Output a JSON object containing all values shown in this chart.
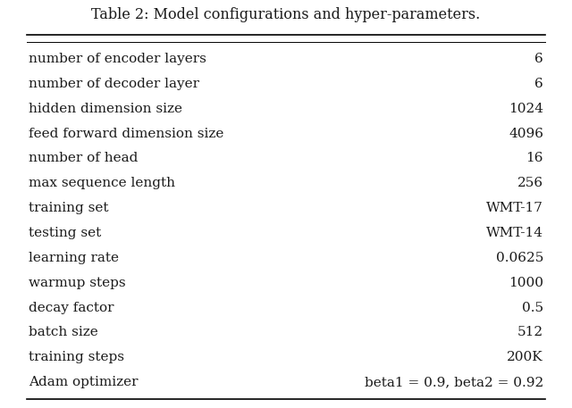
{
  "title": "Table 2: Model configurations and hyper-parameters.",
  "rows": [
    [
      "number of encoder layers",
      "6"
    ],
    [
      "number of decoder layer",
      "6"
    ],
    [
      "hidden dimension size",
      "1024"
    ],
    [
      "feed forward dimension size",
      "4096"
    ],
    [
      "number of head",
      "16"
    ],
    [
      "max sequence length",
      "256"
    ],
    [
      "training set",
      "WMT-17"
    ],
    [
      "testing set",
      "WMT-14"
    ],
    [
      "learning rate",
      "0.0625"
    ],
    [
      "warmup steps",
      "1000"
    ],
    [
      "decay factor",
      "0.5"
    ],
    [
      "batch size",
      "512"
    ],
    [
      "training steps",
      "200K"
    ],
    [
      "Adam optimizer",
      "beta1 = 0.9, beta2 = 0.92"
    ]
  ],
  "background_color": "#ffffff",
  "text_color": "#1a1a1a",
  "title_fontsize": 11.5,
  "row_fontsize": 11.0,
  "figsize": [
    6.4,
    4.57
  ],
  "dpi": 100
}
